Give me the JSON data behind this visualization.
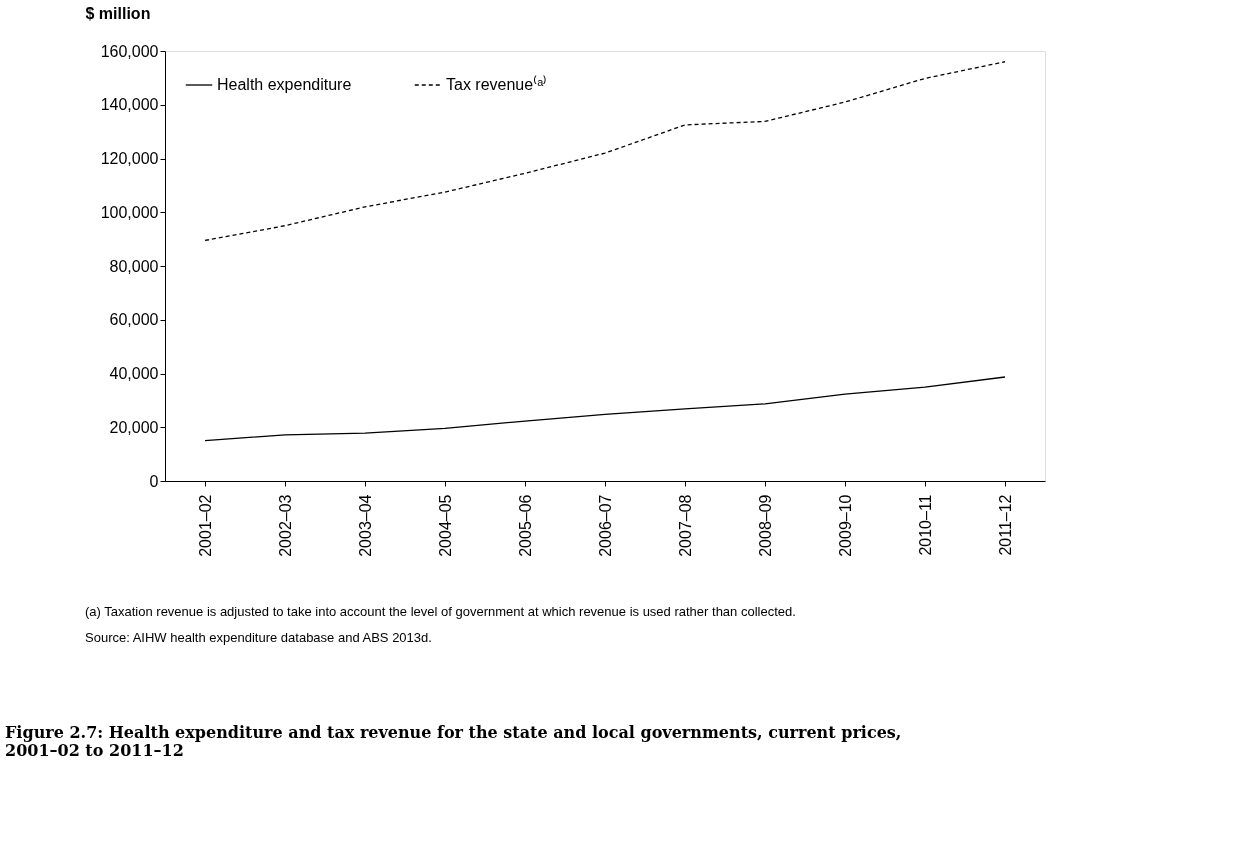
{
  "chart_data": {
    "type": "line",
    "title": "Figure 2.7: Health expenditure and tax revenue for the state and local governments, current prices, 2001–02 to 2011–12",
    "ylabel": "$ million",
    "categories": [
      "2001–02",
      "2002–03",
      "2003–04",
      "2004–05",
      "2005–06",
      "2006–07",
      "2007–08",
      "2008–09",
      "2009–10",
      "2010–11",
      "2011–12"
    ],
    "series": [
      {
        "name": "Health expenditure",
        "color": "#000000",
        "line_style": "solid",
        "values": [
          15000,
          17200,
          17800,
          19600,
          22300,
          24800,
          26800,
          28700,
          32300,
          34900,
          38700
        ]
      },
      {
        "name": "Tax revenue⁽ᵃ⁾",
        "color": "#000000",
        "line_style": "dashed",
        "values": [
          89500,
          95000,
          102000,
          107500,
          114500,
          122000,
          132500,
          133800,
          141000,
          149800,
          156000
        ]
      }
    ],
    "ylim": [
      0,
      160000
    ],
    "yticks": [
      0,
      {
        "value": 20000,
        "label": "20,000"
      },
      {
        "value": 40000,
        "label": "40,000"
      },
      {
        "value": 60000,
        "label": "60,000"
      },
      {
        "value": 80000,
        "label": "80,000"
      },
      {
        "value": 100000,
        "label": "100,000"
      },
      {
        "value": 120000,
        "label": "120,000"
      },
      {
        "value": 140000,
        "label": "140,000"
      },
      {
        "value": 160000,
        "label": "160,000"
      }
    ],
    "grid": false,
    "legend": "top left",
    "marker": "none",
    "annotations": [
      "(a) Taxation revenue is adjusted to take into account the level of government at which revenue is used rather than collected.",
      "Source: AIHW health expenditure database and ABS 2013d."
    ]
  }
}
